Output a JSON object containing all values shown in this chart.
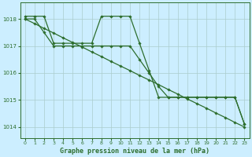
{
  "title": "Graphe pression niveau de la mer (hPa)",
  "background_color": "#cceeff",
  "grid_color": "#aacccc",
  "line_color": "#2d6e2d",
  "xlim": [
    -0.5,
    23.5
  ],
  "ylim": [
    1013.6,
    1018.6
  ],
  "yticks": [
    1014,
    1015,
    1016,
    1017,
    1018
  ],
  "xticks": [
    0,
    1,
    2,
    3,
    4,
    5,
    6,
    7,
    8,
    9,
    10,
    11,
    12,
    13,
    14,
    15,
    16,
    17,
    18,
    19,
    20,
    21,
    22,
    23
  ],
  "series1": [
    1018.1,
    1018.1,
    1018.1,
    1017.1,
    1017.1,
    1017.1,
    1017.1,
    1017.1,
    1018.1,
    1018.1,
    1018.1,
    1018.1,
    1017.1,
    1016.1,
    1015.1,
    1015.1,
    1015.1,
    1015.1,
    1015.1,
    1015.1,
    1015.1,
    1015.1,
    1015.1,
    1014.1
  ],
  "series2": [
    1018.0,
    1017.83,
    1017.65,
    1017.48,
    1017.3,
    1017.13,
    1016.96,
    1016.78,
    1016.61,
    1016.43,
    1016.26,
    1016.09,
    1015.91,
    1015.74,
    1015.57,
    1015.39,
    1015.22,
    1015.04,
    1014.87,
    1014.7,
    1014.52,
    1014.35,
    1014.17,
    1014.0
  ],
  "series3": [
    1018.0,
    1018.0,
    1017.5,
    1017.0,
    1017.0,
    1017.0,
    1017.0,
    1017.0,
    1017.0,
    1017.0,
    1017.0,
    1017.0,
    1016.5,
    1016.0,
    1015.5,
    1015.1,
    1015.1,
    1015.1,
    1015.1,
    1015.1,
    1015.1,
    1015.1,
    1015.1,
    1014.1
  ]
}
